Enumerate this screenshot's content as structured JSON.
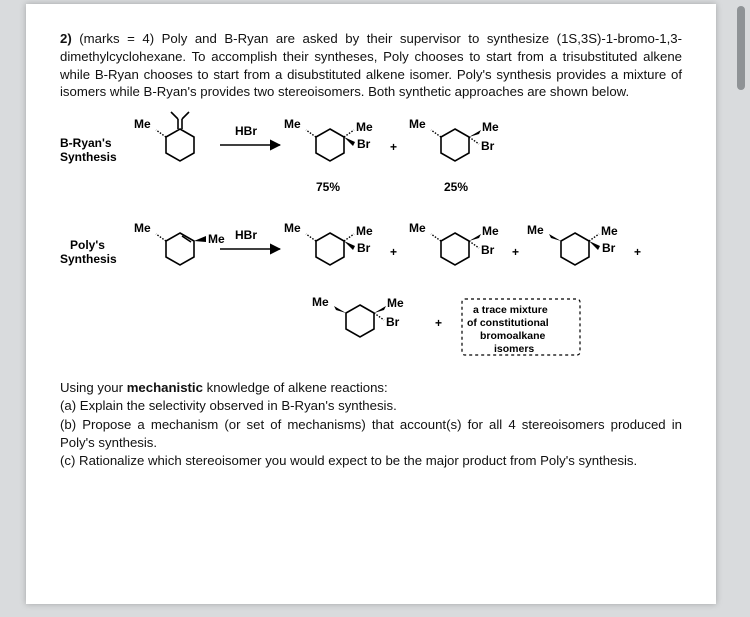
{
  "question": {
    "number": "2)",
    "marks_text": "(marks = 4)",
    "body": "Poly and B-Ryan are asked by their supervisor to synthesize (1S,3S)-1-bromo-1,3-dimethylcyclohexane. To accomplish their syntheses, Poly chooses to start from a trisubstituted alkene while B-Ryan chooses to start from a disubstituted alkene isomer. Poly's synthesis provides a mixture of isomers while B-Ryan's provides two stereoisomers. Both synthetic approaches are shown below."
  },
  "diagram": {
    "bryan_label_line1": "B-Ryan's",
    "bryan_label_line2": "Synthesis",
    "poly_label_line1": "Poly's",
    "poly_label_line2": "Synthesis",
    "reagent": "HBr",
    "me": "Me",
    "br": "Br",
    "plus": "+",
    "pct75": "75%",
    "pct25": "25%",
    "trace_line1": "a trace mixture",
    "trace_line2": "of constitutional",
    "trace_line3": "bromoalkane",
    "trace_line4": "isomers"
  },
  "sub": {
    "intro": "Using your <b>mechanistic</b> knowledge of alkene reactions:",
    "a": "(a) Explain the selectivity observed in B-Ryan's synthesis.",
    "b": "(b) Propose a mechanism (or set of mechanisms) that account(s) for all 4 stereoisomers produced in Poly's synthesis.",
    "c": "(c) Rationalize which stereoisomer you would expect to be the major product from Poly's synthesis."
  },
  "colors": {
    "page_bg": "#ffffff",
    "viewport_bg": "#d9dbdd",
    "scrollbar": "#8f9396",
    "text": "#111111"
  }
}
